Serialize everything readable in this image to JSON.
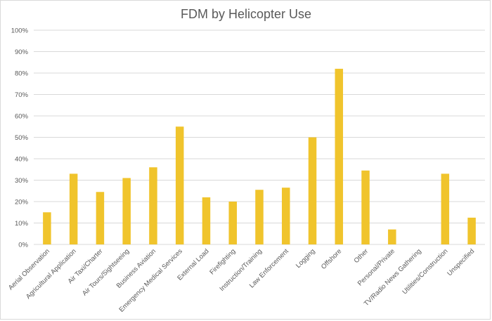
{
  "chart_data": {
    "type": "bar",
    "title": "FDM by Helicopter Use",
    "xlabel": "",
    "ylabel": "",
    "ylim": [
      0,
      100
    ],
    "y_ticks": [
      "0%",
      "10%",
      "20%",
      "30%",
      "40%",
      "50%",
      "60%",
      "70%",
      "80%",
      "90%",
      "100%"
    ],
    "grid": true,
    "categories": [
      "Aerial Observation",
      "Agricultural Application",
      "Air Taxi/Charter",
      "Air Tours/Sightseeing",
      "Business Aviation",
      "Emergency Medical Services",
      "External Load",
      "Firefighting",
      "Instruction/Training",
      "Law Enforcement",
      "Logging",
      "Offshore",
      "Other",
      "Personal/Private",
      "TV/Radio News Gathering",
      "Utilities/Construction",
      "Unspecified"
    ],
    "values": [
      15,
      33,
      24.5,
      31,
      36,
      55,
      22,
      20,
      25.5,
      26.5,
      50,
      82,
      34.5,
      7,
      0,
      33,
      12.5
    ],
    "colors": {
      "bar": "#f0c42c",
      "grid": "#d9d9d9",
      "text": "#595959"
    }
  }
}
